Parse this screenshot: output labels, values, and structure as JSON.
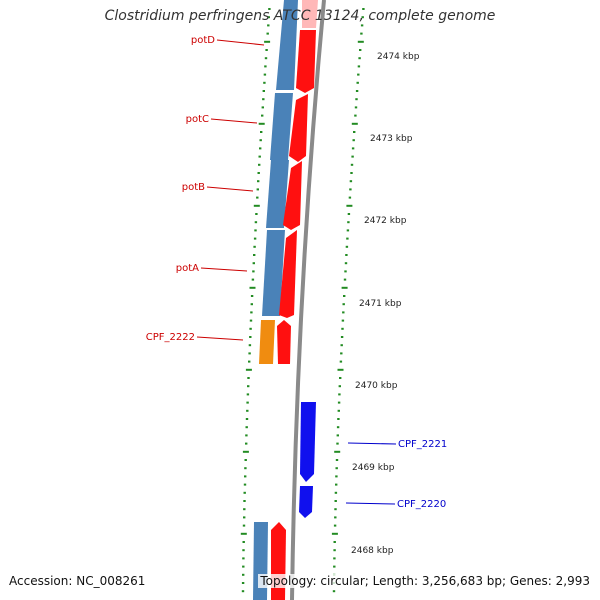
{
  "title": "Clostridium perfringens ATCC 13124, complete genome",
  "accession": "Accession: NC_008261",
  "topology": "Topology: circular; Length: 3,256,683 bp; Genes: 2,993",
  "colors": {
    "backbone": "#8a8a8a",
    "forward_cds": "#ff1010",
    "forward_cds_light": "#ffb0b0",
    "reverse_cds": "#1010ee",
    "gene_feature": "#4a82b8",
    "orange_feature": "#f08c10",
    "tick": "#228b22",
    "forward_label": "#cc0000",
    "reverse_label": "#0000cc"
  },
  "forward_labels": [
    "potD",
    "potC",
    "potB",
    "potA",
    "CPF_2222"
  ],
  "reverse_labels": [
    "CPF_2221",
    "CPF_2220"
  ],
  "kbp_ticks": [
    "2474 kbp",
    "2473 kbp",
    "2472 kbp",
    "2471 kbp",
    "2470 kbp",
    "2469 kbp",
    "2468 kbp"
  ]
}
